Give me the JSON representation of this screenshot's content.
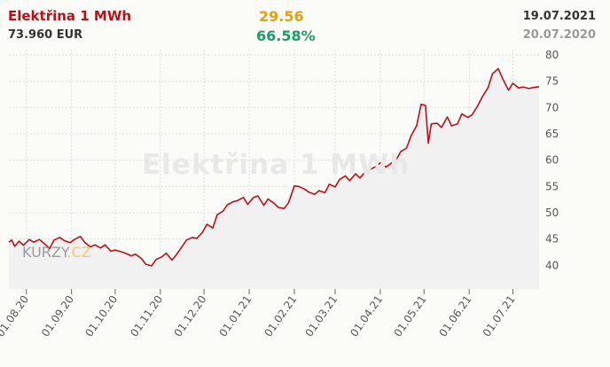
{
  "header": {
    "title": "Elektřina 1 MWh",
    "price": "73.960 EUR",
    "change_abs": "29.56",
    "change_pct": "66.58%",
    "date_current": "19.07.2021",
    "date_previous": "20.07.2020"
  },
  "watermark": "Elektřina 1 MWh",
  "logo": {
    "part1": "KURZY",
    "part2": ".CZ"
  },
  "colors": {
    "line": "#b5121b",
    "title": "#b5121b",
    "change_abs": "#e0a010",
    "change_pct": "#1f9b6b",
    "area": "#f1f1f1",
    "grid": "#dcdcdc"
  },
  "chart_data": {
    "type": "area",
    "xlabel": "",
    "ylabel": "",
    "y_axis_position": "right",
    "grid": true,
    "ylim": [
      35.5,
      81
    ],
    "xlim": [
      "2020-07-20",
      "2021-07-19"
    ],
    "y_ticks": [
      40,
      45,
      50,
      55,
      60,
      65,
      70,
      75,
      80
    ],
    "x_ticks": [
      {
        "date": "2020-08-01",
        "label": "01.08.20"
      },
      {
        "date": "2020-09-01",
        "label": "01.09.20"
      },
      {
        "date": "2020-10-01",
        "label": "01.10.20"
      },
      {
        "date": "2020-11-01",
        "label": "01.11.20"
      },
      {
        "date": "2020-12-01",
        "label": "01.12.20"
      },
      {
        "date": "2021-01-01",
        "label": "01.01.21"
      },
      {
        "date": "2021-02-01",
        "label": "01.02.21"
      },
      {
        "date": "2021-03-01",
        "label": "01.03.21"
      },
      {
        "date": "2021-04-01",
        "label": "01.04.21"
      },
      {
        "date": "2021-05-01",
        "label": "01.05.21"
      },
      {
        "date": "2021-06-01",
        "label": "01.06.21"
      },
      {
        "date": "2021-07-01",
        "label": "01.07.21"
      }
    ],
    "series": [
      {
        "points": [
          [
            "2020-07-20",
            44.4
          ],
          [
            "2020-07-22",
            44.8
          ],
          [
            "2020-07-24",
            43.6
          ],
          [
            "2020-07-27",
            44.6
          ],
          [
            "2020-07-30",
            43.8
          ],
          [
            "2020-08-03",
            44.9
          ],
          [
            "2020-08-06",
            44.4
          ],
          [
            "2020-08-10",
            44.9
          ],
          [
            "2020-08-13",
            44.2
          ],
          [
            "2020-08-17",
            43.2
          ],
          [
            "2020-08-20",
            44.8
          ],
          [
            "2020-08-24",
            45.3
          ],
          [
            "2020-08-27",
            44.7
          ],
          [
            "2020-08-31",
            44.3
          ],
          [
            "2020-09-03",
            44.9
          ],
          [
            "2020-09-07",
            45.5
          ],
          [
            "2020-09-10",
            44.4
          ],
          [
            "2020-09-14",
            43.5
          ],
          [
            "2020-09-17",
            43.9
          ],
          [
            "2020-09-21",
            43.3
          ],
          [
            "2020-09-24",
            43.9
          ],
          [
            "2020-09-28",
            42.7
          ],
          [
            "2020-10-01",
            42.9
          ],
          [
            "2020-10-05",
            42.6
          ],
          [
            "2020-10-08",
            42.3
          ],
          [
            "2020-10-12",
            41.8
          ],
          [
            "2020-10-15",
            42.1
          ],
          [
            "2020-10-19",
            41.3
          ],
          [
            "2020-10-22",
            40.2
          ],
          [
            "2020-10-26",
            39.9
          ],
          [
            "2020-10-29",
            41.1
          ],
          [
            "2020-11-02",
            41.6
          ],
          [
            "2020-11-05",
            42.3
          ],
          [
            "2020-11-09",
            41.0
          ],
          [
            "2020-11-12",
            42.0
          ],
          [
            "2020-11-16",
            43.6
          ],
          [
            "2020-11-19",
            44.8
          ],
          [
            "2020-11-23",
            45.3
          ],
          [
            "2020-11-26",
            45.1
          ],
          [
            "2020-11-30",
            46.3
          ],
          [
            "2020-12-03",
            47.8
          ],
          [
            "2020-12-07",
            47.1
          ],
          [
            "2020-12-10",
            49.6
          ],
          [
            "2020-12-14",
            50.3
          ],
          [
            "2020-12-17",
            51.5
          ],
          [
            "2020-12-21",
            52.1
          ],
          [
            "2020-12-24",
            52.3
          ],
          [
            "2020-12-28",
            52.9
          ],
          [
            "2020-12-31",
            51.6
          ],
          [
            "2021-01-04",
            52.9
          ],
          [
            "2021-01-07",
            53.2
          ],
          [
            "2021-01-11",
            51.4
          ],
          [
            "2021-01-14",
            52.6
          ],
          [
            "2021-01-18",
            51.8
          ],
          [
            "2021-01-21",
            51.0
          ],
          [
            "2021-01-25",
            50.8
          ],
          [
            "2021-01-28",
            51.9
          ],
          [
            "2021-02-01",
            55.1
          ],
          [
            "2021-02-04",
            55.0
          ],
          [
            "2021-02-08",
            54.5
          ],
          [
            "2021-02-11",
            53.9
          ],
          [
            "2021-02-15",
            53.5
          ],
          [
            "2021-02-18",
            54.2
          ],
          [
            "2021-02-22",
            53.8
          ],
          [
            "2021-02-25",
            55.4
          ],
          [
            "2021-03-01",
            54.9
          ],
          [
            "2021-03-04",
            56.3
          ],
          [
            "2021-03-08",
            57.0
          ],
          [
            "2021-03-11",
            56.1
          ],
          [
            "2021-03-15",
            57.4
          ],
          [
            "2021-03-18",
            56.6
          ],
          [
            "2021-03-22",
            57.9
          ],
          [
            "2021-03-25",
            58.2
          ],
          [
            "2021-03-29",
            58.8
          ],
          [
            "2021-04-01",
            59.5
          ],
          [
            "2021-04-05",
            58.7
          ],
          [
            "2021-04-08",
            59.3
          ],
          [
            "2021-04-12",
            60.1
          ],
          [
            "2021-04-15",
            61.6
          ],
          [
            "2021-04-19",
            62.3
          ],
          [
            "2021-04-22",
            64.5
          ],
          [
            "2021-04-26",
            66.6
          ],
          [
            "2021-04-29",
            70.6
          ],
          [
            "2021-05-02",
            70.4
          ],
          [
            "2021-05-04",
            63.2
          ],
          [
            "2021-05-06",
            66.9
          ],
          [
            "2021-05-10",
            67.0
          ],
          [
            "2021-05-13",
            66.2
          ],
          [
            "2021-05-17",
            68.2
          ],
          [
            "2021-05-20",
            66.5
          ],
          [
            "2021-05-24",
            66.9
          ],
          [
            "2021-05-27",
            68.8
          ],
          [
            "2021-05-31",
            68.1
          ],
          [
            "2021-06-03",
            68.6
          ],
          [
            "2021-06-07",
            70.4
          ],
          [
            "2021-06-10",
            72.0
          ],
          [
            "2021-06-14",
            73.8
          ],
          [
            "2021-06-17",
            76.4
          ],
          [
            "2021-06-21",
            77.4
          ],
          [
            "2021-06-24",
            75.5
          ],
          [
            "2021-06-28",
            73.3
          ],
          [
            "2021-07-01",
            74.6
          ],
          [
            "2021-07-05",
            73.7
          ],
          [
            "2021-07-08",
            73.9
          ],
          [
            "2021-07-12",
            73.6
          ],
          [
            "2021-07-15",
            73.8
          ],
          [
            "2021-07-19",
            73.96
          ]
        ]
      }
    ]
  }
}
